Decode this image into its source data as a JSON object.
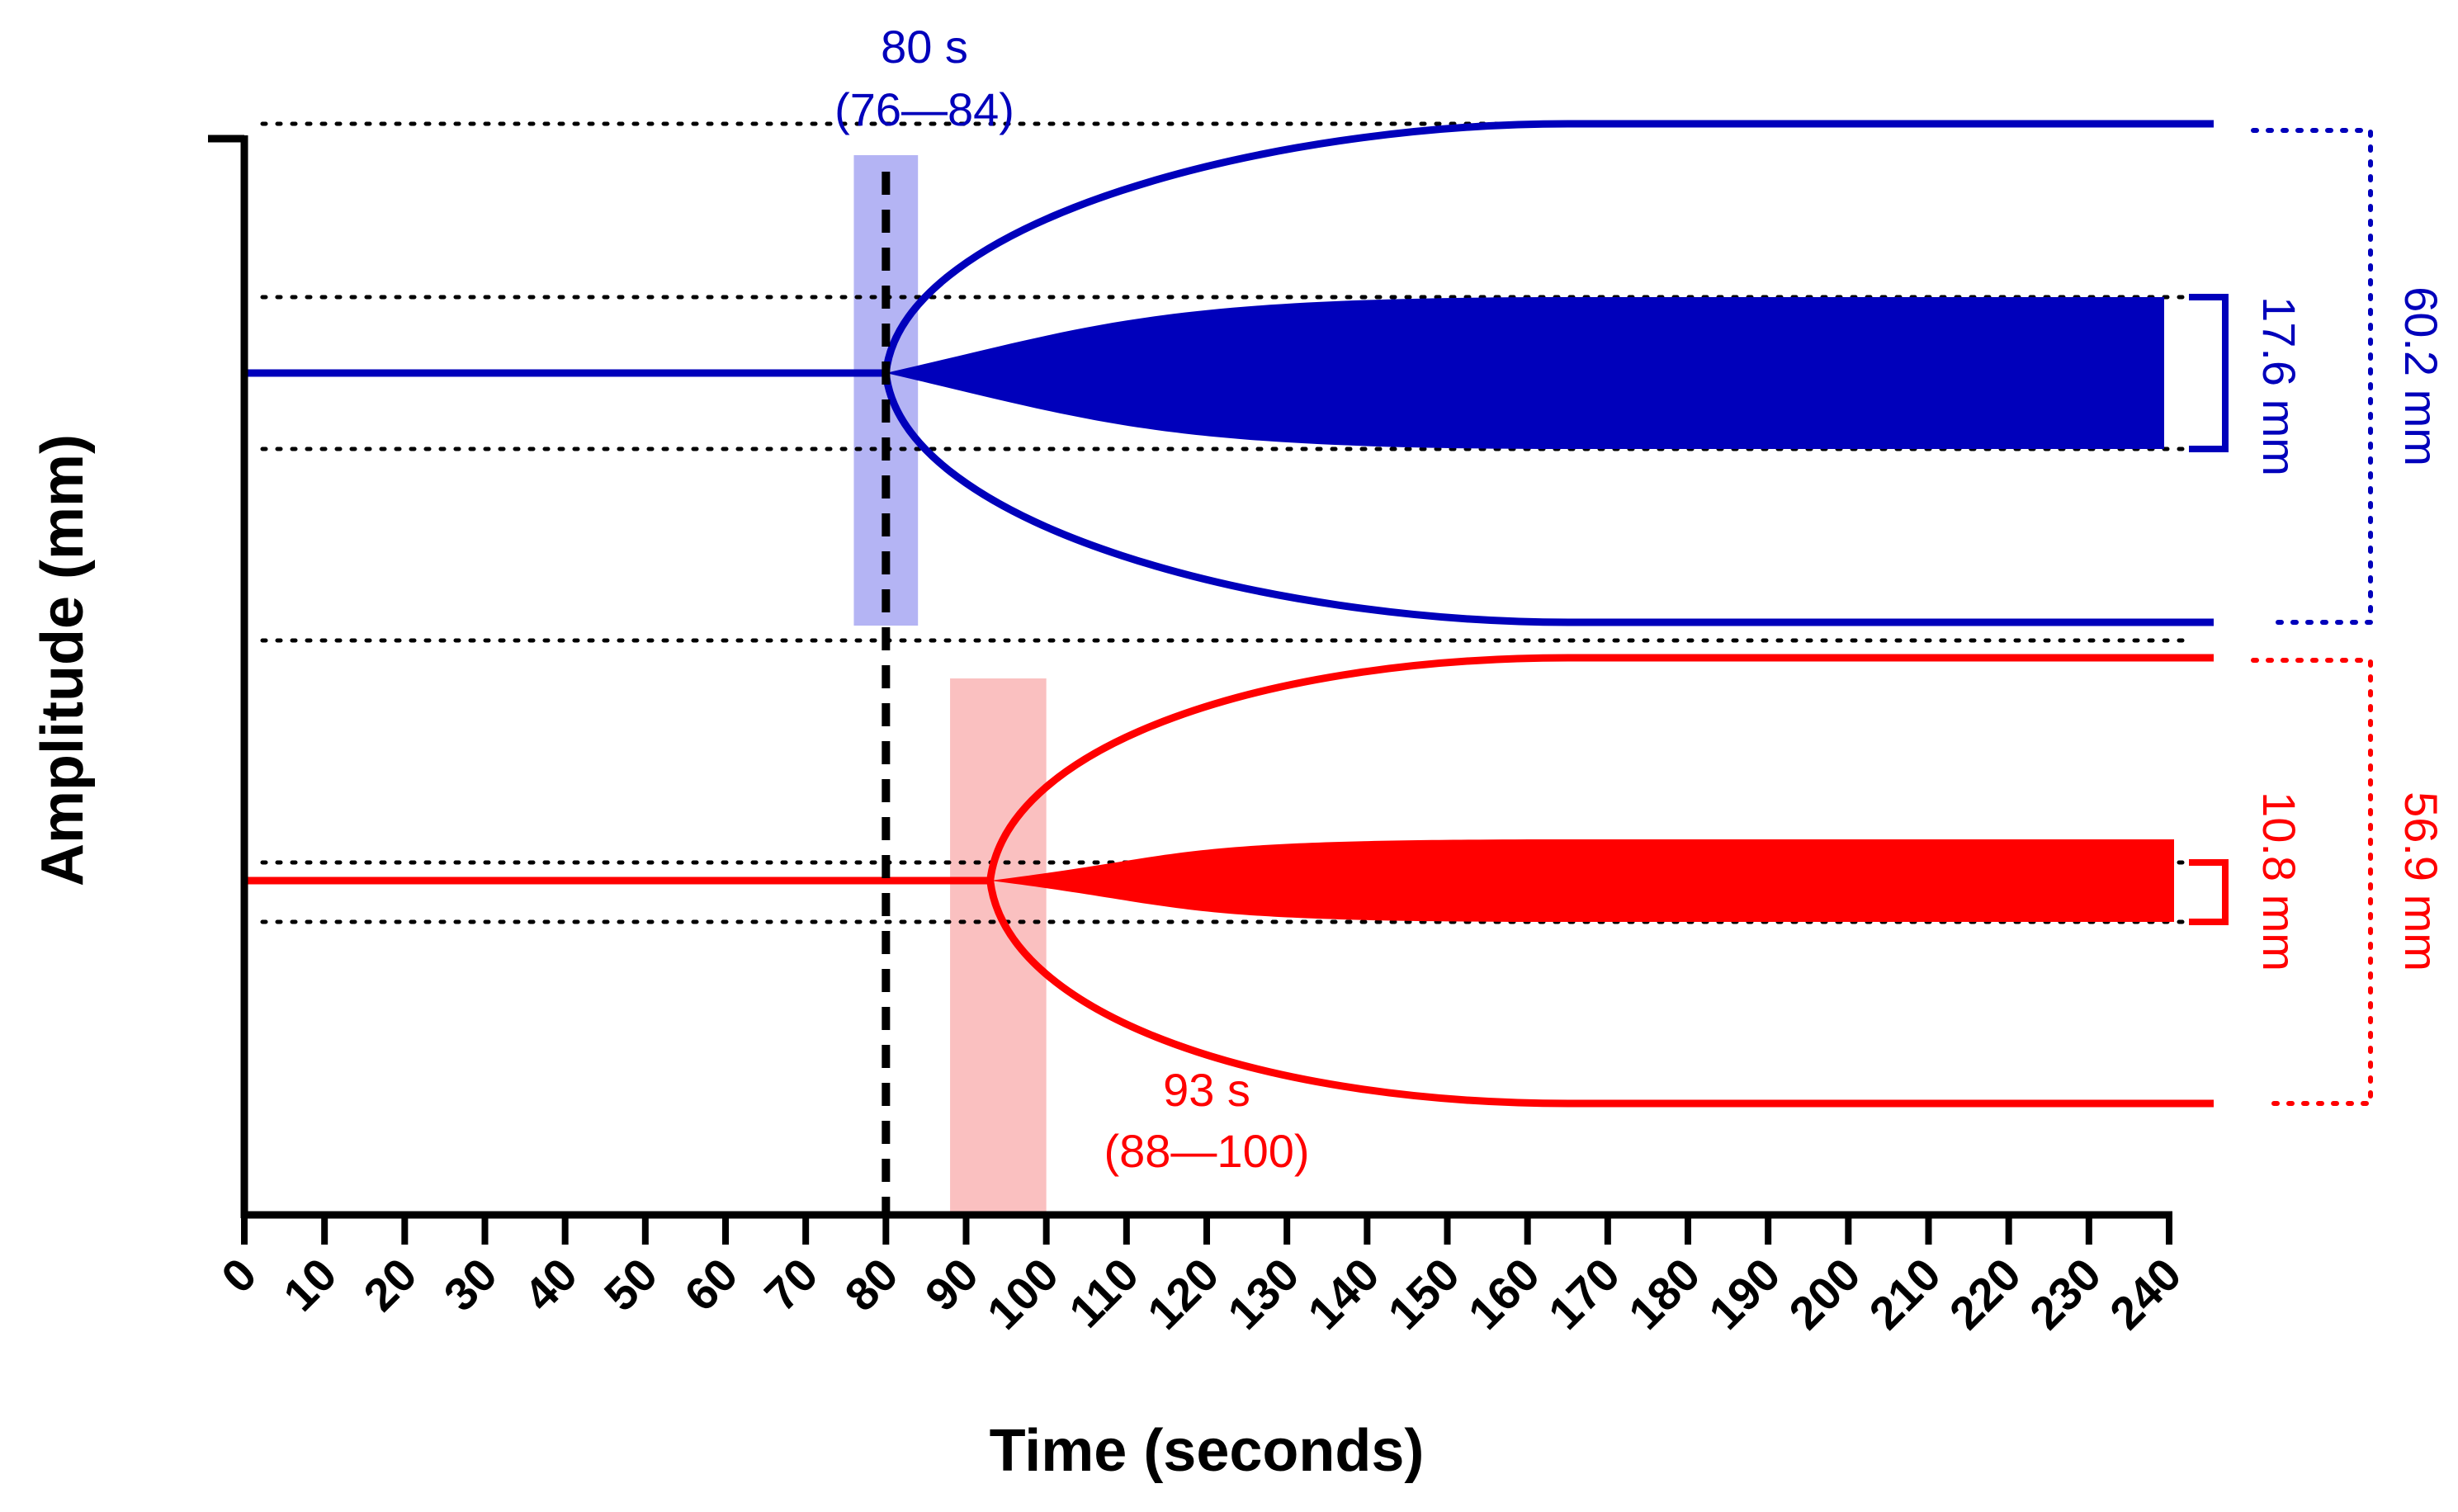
{
  "chart_data": {
    "type": "line",
    "title": "",
    "xlabel": "Time (seconds)",
    "ylabel": "Amplitude (mm)",
    "xlim": [
      0,
      240
    ],
    "xticks": [
      "0",
      "10",
      "20",
      "30",
      "40",
      "50",
      "60",
      "70",
      "80",
      "90",
      "100",
      "110",
      "120",
      "130",
      "140",
      "150",
      "160",
      "170",
      "180",
      "190",
      "200",
      "210",
      "220",
      "230",
      "240"
    ],
    "vertical_reference_line_x": 80,
    "grid": false,
    "series": [
      {
        "color": "#0000bb",
        "band_color": "#b4b4f4",
        "onset_s": 80,
        "onset_range_s": [
          76,
          84
        ],
        "onset_label": "80 s",
        "onset_range_label": "(76—84)",
        "envelope_amplitude_mm": 60.2,
        "envelope_label": "60.2 mm",
        "oscillation_amplitude_mm": 17.6,
        "oscillation_label": "17.6 mm"
      },
      {
        "color": "#ff0000",
        "band_color": "#fac0c0",
        "onset_s": 93,
        "onset_range_s": [
          88,
          100
        ],
        "onset_label": "93 s",
        "onset_range_label": "(88—100)",
        "envelope_amplitude_mm": 56.9,
        "envelope_label": "56.9 mm",
        "oscillation_amplitude_mm": 10.8,
        "oscillation_label": "10.8 mm"
      }
    ]
  }
}
